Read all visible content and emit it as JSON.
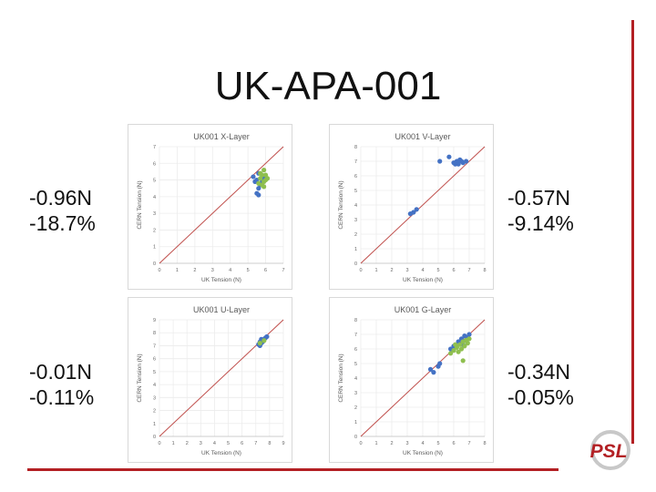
{
  "slide": {
    "title": "UK-APA-001"
  },
  "stats": [
    {
      "tension": "-0.96N",
      "percent": "-18.7%"
    },
    {
      "tension": "-0.57N",
      "percent": "-9.14%"
    },
    {
      "tension": "-0.01N",
      "percent": "-0.11%"
    },
    {
      "tension": "-0.34N",
      "percent": "-0.05%"
    }
  ],
  "logo": {
    "text": "PSL"
  },
  "chart_data": [
    {
      "type": "scatter",
      "title": "UK001 X-Layer",
      "xlabel": "UK Tension (N)",
      "ylabel": "CERN Tension (N)",
      "xlim": [
        0,
        7
      ],
      "ylim": [
        0,
        7
      ],
      "xticks": [
        "0",
        "1",
        "2",
        "3",
        "4",
        "5",
        "6",
        "7"
      ],
      "yticks": [
        "0",
        "1",
        "2",
        "3",
        "4",
        "5",
        "6",
        "7"
      ],
      "reference_line": "y = x",
      "series": [
        {
          "color": "#4472c4",
          "points": [
            [
              5.3,
              5.2
            ],
            [
              5.4,
              4.9
            ],
            [
              5.5,
              4.2
            ],
            [
              5.6,
              4.5
            ],
            [
              5.6,
              5.4
            ],
            [
              5.7,
              4.7
            ],
            [
              5.8,
              4.9
            ],
            [
              5.9,
              5.1
            ],
            [
              5.6,
              4.1
            ],
            [
              5.5,
              5.0
            ]
          ]
        },
        {
          "color": "#8fbf4f",
          "points": [
            [
              5.7,
              5.1
            ],
            [
              5.8,
              5.3
            ],
            [
              5.9,
              4.9
            ],
            [
              6.0,
              5.0
            ],
            [
              5.6,
              4.8
            ],
            [
              5.8,
              4.7
            ],
            [
              6.0,
              5.3
            ],
            [
              5.9,
              5.6
            ],
            [
              5.7,
              5.4
            ],
            [
              6.1,
              5.1
            ],
            [
              5.9,
              4.6
            ]
          ]
        }
      ]
    },
    {
      "type": "scatter",
      "title": "UK001 V-Layer",
      "xlabel": "UK Tension (N)",
      "ylabel": "CERN Tension (N)",
      "xlim": [
        0,
        8
      ],
      "ylim": [
        0,
        8
      ],
      "xticks": [
        "0",
        "1",
        "2",
        "3",
        "4",
        "5",
        "6",
        "7",
        "8"
      ],
      "yticks": [
        "0",
        "1",
        "2",
        "3",
        "4",
        "5",
        "6",
        "7",
        "8"
      ],
      "reference_line": "y = x",
      "series": [
        {
          "color": "#4472c4",
          "points": [
            [
              3.2,
              3.4
            ],
            [
              3.4,
              3.5
            ],
            [
              3.6,
              3.7
            ],
            [
              5.1,
              7.0
            ],
            [
              5.7,
              7.3
            ],
            [
              6.0,
              6.9
            ],
            [
              6.2,
              7.0
            ],
            [
              6.3,
              6.8
            ],
            [
              6.4,
              7.1
            ],
            [
              6.5,
              7.0
            ],
            [
              6.6,
              6.9
            ],
            [
              6.8,
              7.0
            ],
            [
              6.1,
              6.8
            ]
          ]
        }
      ]
    },
    {
      "type": "scatter",
      "title": "UK001 U-Layer",
      "xlabel": "UK Tension (N)",
      "ylabel": "CERN Tension (N)",
      "xlim": [
        0,
        9
      ],
      "ylim": [
        0,
        9
      ],
      "xticks": [
        "0",
        "1",
        "2",
        "3",
        "4",
        "5",
        "6",
        "7",
        "8",
        "9"
      ],
      "yticks": [
        "0",
        "1",
        "2",
        "3",
        "4",
        "5",
        "6",
        "7",
        "8",
        "9"
      ],
      "reference_line": "y = x",
      "series": [
        {
          "color": "#4472c4",
          "points": [
            [
              7.2,
              7.1
            ],
            [
              7.3,
              7.3
            ],
            [
              7.4,
              7.2
            ],
            [
              7.5,
              7.4
            ],
            [
              7.6,
              7.5
            ],
            [
              7.7,
              7.6
            ],
            [
              7.8,
              7.7
            ],
            [
              7.5,
              7.3
            ],
            [
              7.3,
              7.0
            ],
            [
              7.4,
              7.5
            ]
          ]
        },
        {
          "color": "#8fbf4f",
          "points": [
            [
              7.3,
              7.2
            ],
            [
              7.6,
              7.4
            ]
          ]
        }
      ]
    },
    {
      "type": "scatter",
      "title": "UK001 G-Layer",
      "xlabel": "UK Tension (N)",
      "ylabel": "CERN Tension (N)",
      "xlim": [
        0,
        8
      ],
      "ylim": [
        0,
        8
      ],
      "xticks": [
        "0",
        "1",
        "2",
        "3",
        "4",
        "5",
        "6",
        "7",
        "8"
      ],
      "yticks": [
        "0",
        "1",
        "2",
        "3",
        "4",
        "5",
        "6",
        "7",
        "8"
      ],
      "reference_line": "y = x",
      "series": [
        {
          "color": "#4472c4",
          "points": [
            [
              4.5,
              4.6
            ],
            [
              4.7,
              4.4
            ],
            [
              5.0,
              4.8
            ],
            [
              5.1,
              5.0
            ],
            [
              5.8,
              6.0
            ],
            [
              6.0,
              6.2
            ],
            [
              6.3,
              6.5
            ],
            [
              6.5,
              6.7
            ],
            [
              6.7,
              6.9
            ],
            [
              6.9,
              6.8
            ],
            [
              7.0,
              7.0
            ],
            [
              6.8,
              6.6
            ],
            [
              6.6,
              6.3
            ]
          ]
        },
        {
          "color": "#8fbf4f",
          "points": [
            [
              5.8,
              5.7
            ],
            [
              6.0,
              5.9
            ],
            [
              6.2,
              6.1
            ],
            [
              6.3,
              5.8
            ],
            [
              6.4,
              6.3
            ],
            [
              6.5,
              6.0
            ],
            [
              6.6,
              6.5
            ],
            [
              6.7,
              6.2
            ],
            [
              6.8,
              6.6
            ],
            [
              6.9,
              6.4
            ],
            [
              7.0,
              6.7
            ],
            [
              6.6,
              5.2
            ],
            [
              6.1,
              6.3
            ]
          ]
        }
      ]
    }
  ]
}
